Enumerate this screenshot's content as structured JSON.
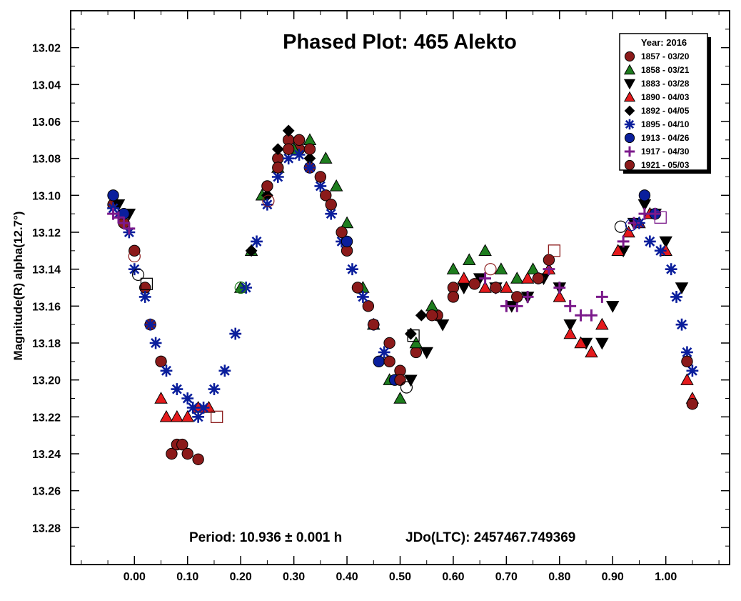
{
  "chart_data": {
    "type": "scatter",
    "title": "Phased Plot: 465 Alekto",
    "xlabel": "",
    "ylabel": "Magnitude(R) alpha(12.7°)",
    "xlim": [
      -0.12,
      1.12
    ],
    "ylim": [
      13.3,
      13.0
    ],
    "y_inverted": true,
    "x_ticks": [
      "0.00",
      "0.10",
      "0.20",
      "0.30",
      "0.40",
      "0.50",
      "0.60",
      "0.70",
      "0.80",
      "0.90",
      "1.00"
    ],
    "y_ticks": [
      "13.02",
      "13.04",
      "13.06",
      "13.08",
      "13.10",
      "13.12",
      "13.14",
      "13.16",
      "13.18",
      "13.20",
      "13.22",
      "13.24",
      "13.26",
      "13.28"
    ],
    "grid": false,
    "legend_position": "top-right",
    "legend_title": "Year: 2016",
    "period_text": "Period: 10.936 ± 0.001 h",
    "epoch_text": "JDo(LTC): 2457467.749369",
    "series": [
      {
        "name": "1857 - 03/20",
        "marker": "circle",
        "color": "#8b1a1a",
        "points": [
          [
            -0.04,
            13.105
          ],
          [
            -0.02,
            13.115
          ],
          [
            0.0,
            13.13
          ],
          [
            0.02,
            13.15
          ],
          [
            0.03,
            13.17
          ],
          [
            0.05,
            13.19
          ],
          [
            0.27,
            13.08
          ],
          [
            0.29,
            13.07
          ],
          [
            0.31,
            13.075
          ],
          [
            0.33,
            13.085
          ],
          [
            0.36,
            13.1
          ],
          [
            0.4,
            13.13
          ],
          [
            0.44,
            13.16
          ],
          [
            0.48,
            13.18
          ],
          [
            0.5,
            13.195
          ],
          [
            0.53,
            13.185
          ],
          [
            0.57,
            13.165
          ],
          [
            0.6,
            13.15
          ]
        ]
      },
      {
        "name": "1858 - 03/21",
        "marker": "triangle-up",
        "color": "#1e7d1e",
        "points": [
          [
            0.2,
            13.15
          ],
          [
            0.22,
            13.13
          ],
          [
            0.24,
            13.1
          ],
          [
            0.27,
            13.085
          ],
          [
            0.3,
            13.075
          ],
          [
            0.33,
            13.07
          ],
          [
            0.36,
            13.08
          ],
          [
            0.38,
            13.095
          ],
          [
            0.4,
            13.115
          ],
          [
            0.43,
            13.15
          ],
          [
            0.45,
            13.17
          ],
          [
            0.48,
            13.2
          ],
          [
            0.5,
            13.21
          ],
          [
            0.53,
            13.18
          ],
          [
            0.56,
            13.16
          ],
          [
            0.6,
            13.14
          ],
          [
            0.63,
            13.135
          ],
          [
            0.66,
            13.13
          ],
          [
            0.69,
            13.14
          ],
          [
            0.72,
            13.145
          ],
          [
            0.75,
            13.14
          ]
        ]
      },
      {
        "name": "1883 - 03/28",
        "marker": "triangle-down",
        "color": "#000000",
        "points": [
          [
            -0.03,
            13.105
          ],
          [
            -0.01,
            13.11
          ],
          [
            0.52,
            13.2
          ],
          [
            0.55,
            13.185
          ],
          [
            0.58,
            13.17
          ],
          [
            0.62,
            13.15
          ],
          [
            0.65,
            13.145
          ],
          [
            0.68,
            13.15
          ],
          [
            0.71,
            13.16
          ],
          [
            0.74,
            13.155
          ],
          [
            0.77,
            13.145
          ],
          [
            0.8,
            13.15
          ],
          [
            0.82,
            13.17
          ],
          [
            0.85,
            13.18
          ],
          [
            0.88,
            13.18
          ],
          [
            0.9,
            13.16
          ],
          [
            0.92,
            13.13
          ],
          [
            0.94,
            13.115
          ],
          [
            0.96,
            13.105
          ],
          [
            0.98,
            13.11
          ],
          [
            1.0,
            13.125
          ],
          [
            1.03,
            13.15
          ]
        ]
      },
      {
        "name": "1890 - 04/03",
        "marker": "triangle-up",
        "color": "#e41a1c",
        "points": [
          [
            0.05,
            13.21
          ],
          [
            0.06,
            13.22
          ],
          [
            0.08,
            13.22
          ],
          [
            0.1,
            13.22
          ],
          [
            0.12,
            13.215
          ],
          [
            0.14,
            13.215
          ],
          [
            0.62,
            13.145
          ],
          [
            0.66,
            13.15
          ],
          [
            0.7,
            13.15
          ],
          [
            0.74,
            13.145
          ],
          [
            0.78,
            13.14
          ],
          [
            0.8,
            13.155
          ],
          [
            0.82,
            13.175
          ],
          [
            0.84,
            13.18
          ],
          [
            0.86,
            13.185
          ],
          [
            0.88,
            13.17
          ],
          [
            0.91,
            13.13
          ],
          [
            0.93,
            13.12
          ],
          [
            0.95,
            13.115
          ],
          [
            0.97,
            13.11
          ],
          [
            1.0,
            13.13
          ],
          [
            1.04,
            13.2
          ],
          [
            1.05,
            13.21
          ]
        ]
      },
      {
        "name": "1892 - 04/05",
        "marker": "diamond",
        "color": "#000000",
        "points": [
          [
            0.22,
            13.13
          ],
          [
            0.25,
            13.1
          ],
          [
            0.27,
            13.075
          ],
          [
            0.29,
            13.065
          ],
          [
            0.31,
            13.07
          ],
          [
            0.33,
            13.08
          ],
          [
            0.52,
            13.175
          ],
          [
            0.54,
            13.165
          ]
        ]
      },
      {
        "name": "1895 - 04/10",
        "marker": "asterisk",
        "color": "#0a1e9c",
        "points": [
          [
            -0.04,
            13.107
          ],
          [
            -0.03,
            13.11
          ],
          [
            -0.01,
            13.12
          ],
          [
            0.0,
            13.14
          ],
          [
            0.02,
            13.155
          ],
          [
            0.03,
            13.17
          ],
          [
            0.04,
            13.18
          ],
          [
            0.06,
            13.195
          ],
          [
            0.08,
            13.205
          ],
          [
            0.1,
            13.21
          ],
          [
            0.11,
            13.215
          ],
          [
            0.12,
            13.22
          ],
          [
            0.13,
            13.215
          ],
          [
            0.15,
            13.205
          ],
          [
            0.17,
            13.195
          ],
          [
            0.19,
            13.175
          ],
          [
            0.21,
            13.15
          ],
          [
            0.23,
            13.125
          ],
          [
            0.25,
            13.105
          ],
          [
            0.27,
            13.09
          ],
          [
            0.29,
            13.08
          ],
          [
            0.31,
            13.078
          ],
          [
            0.33,
            13.085
          ],
          [
            0.35,
            13.095
          ],
          [
            0.37,
            13.11
          ],
          [
            0.39,
            13.125
          ],
          [
            0.41,
            13.14
          ],
          [
            0.43,
            13.155
          ],
          [
            0.45,
            13.17
          ],
          [
            0.47,
            13.185
          ],
          [
            0.95,
            13.115
          ],
          [
            0.97,
            13.125
          ],
          [
            0.99,
            13.13
          ],
          [
            1.01,
            13.14
          ],
          [
            1.02,
            13.155
          ],
          [
            1.03,
            13.17
          ],
          [
            1.04,
            13.185
          ],
          [
            1.05,
            13.195
          ]
        ]
      },
      {
        "name": "1913 - 04/26",
        "marker": "circle",
        "color": "#0a1e9c",
        "points": [
          [
            -0.04,
            13.1
          ],
          [
            -0.02,
            13.11
          ],
          [
            0.96,
            13.1
          ],
          [
            0.98,
            13.11
          ],
          [
            0.4,
            13.125
          ],
          [
            0.46,
            13.19
          ],
          [
            0.49,
            13.2
          ]
        ]
      },
      {
        "name": "1917 - 04/30",
        "marker": "plus",
        "color": "#7b1a8b",
        "points": [
          [
            -0.04,
            13.11
          ],
          [
            -0.03,
            13.112
          ],
          [
            -0.02,
            13.115
          ],
          [
            -0.01,
            13.118
          ],
          [
            0.66,
            13.145
          ],
          [
            0.68,
            13.15
          ],
          [
            0.7,
            13.16
          ],
          [
            0.72,
            13.16
          ],
          [
            0.74,
            13.155
          ],
          [
            0.76,
            13.145
          ],
          [
            0.78,
            13.14
          ],
          [
            0.8,
            13.15
          ],
          [
            0.82,
            13.16
          ],
          [
            0.84,
            13.165
          ],
          [
            0.86,
            13.165
          ],
          [
            0.88,
            13.155
          ],
          [
            0.92,
            13.125
          ],
          [
            0.94,
            13.115
          ],
          [
            0.96,
            13.11
          ],
          [
            0.98,
            13.11
          ]
        ]
      },
      {
        "name": "1921 - 05/03",
        "marker": "circle",
        "color": "#8b1a1a",
        "points": [
          [
            0.07,
            13.24
          ],
          [
            0.08,
            13.235
          ],
          [
            0.09,
            13.235
          ],
          [
            0.1,
            13.24
          ],
          [
            0.12,
            13.243
          ],
          [
            0.25,
            13.095
          ],
          [
            0.27,
            13.085
          ],
          [
            0.29,
            13.075
          ],
          [
            0.31,
            13.07
          ],
          [
            0.33,
            13.075
          ],
          [
            0.35,
            13.09
          ],
          [
            0.37,
            13.105
          ],
          [
            0.39,
            13.12
          ],
          [
            0.42,
            13.15
          ],
          [
            0.45,
            13.17
          ],
          [
            0.48,
            13.19
          ],
          [
            0.5,
            13.2
          ],
          [
            0.56,
            13.165
          ],
          [
            0.6,
            13.155
          ],
          [
            0.64,
            13.148
          ],
          [
            0.68,
            13.15
          ],
          [
            0.72,
            13.155
          ],
          [
            0.76,
            13.145
          ],
          [
            0.78,
            13.135
          ],
          [
            1.04,
            13.19
          ],
          [
            1.05,
            13.213
          ]
        ]
      }
    ],
    "markers_open": [
      {
        "shape": "circle",
        "color": "#000000",
        "x": 0.007,
        "y": 13.143
      },
      {
        "shape": "square",
        "color": "#000000",
        "x": 0.023,
        "y": 13.148
      },
      {
        "shape": "circle",
        "color": "#8b1a1a",
        "x": 0.0,
        "y": 13.133
      },
      {
        "shape": "circle",
        "color": "#1e7d1e",
        "x": 0.2,
        "y": 13.15
      },
      {
        "shape": "circle",
        "color": "#8b1a1a",
        "x": 0.252,
        "y": 13.103
      },
      {
        "shape": "square",
        "color": "#8b1a1a",
        "x": 0.155,
        "y": 13.22
      },
      {
        "shape": "circle",
        "color": "#000000",
        "x": 0.512,
        "y": 13.204
      },
      {
        "shape": "square",
        "color": "#000000",
        "x": 0.525,
        "y": 13.176
      },
      {
        "shape": "square",
        "color": "#8b1a1a",
        "x": 0.79,
        "y": 13.13
      },
      {
        "shape": "circle",
        "color": "#8b1a1a",
        "x": 0.67,
        "y": 13.14
      },
      {
        "shape": "circle",
        "color": "#000000",
        "x": 0.915,
        "y": 13.117
      },
      {
        "shape": "circle",
        "color": "#0a1e9c",
        "x": 0.935,
        "y": 13.116
      },
      {
        "shape": "square",
        "color": "#7b1a8b",
        "x": 0.99,
        "y": 13.112
      }
    ]
  }
}
